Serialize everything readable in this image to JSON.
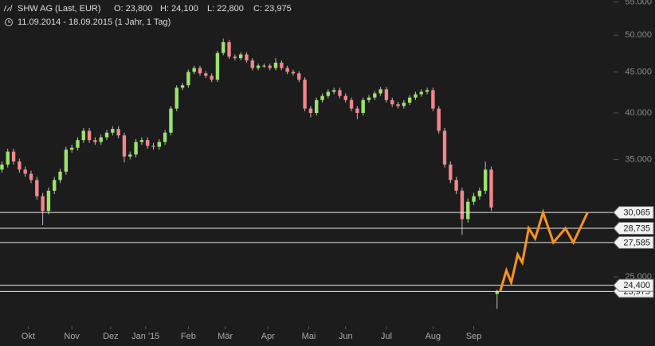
{
  "chart_data": {
    "type": "candlestick",
    "title": "SHW AG (Last, EUR)",
    "ohlc_labels": [
      "O: 23,800",
      "H: 24,100",
      "L: 22,800",
      "C: 23,975"
    ],
    "subtitle": "11.09.2014 - 18.09.2015 (1 Jahr, 1 Tag)",
    "log_scale": true,
    "ylim": [
      20500,
      55300
    ],
    "yticks": [
      {
        "value": 55000,
        "label": "55.000"
      },
      {
        "value": 50000,
        "label": "50.000"
      },
      {
        "value": 45000,
        "label": "45.000"
      },
      {
        "value": 40000,
        "label": "40.000"
      },
      {
        "value": 35000,
        "label": "35.000"
      },
      {
        "value": 25000,
        "label": "25.000"
      }
    ],
    "xlim": [
      -1,
      315
    ],
    "xticks": [
      {
        "value": 13.5,
        "label": "Okt"
      },
      {
        "value": 36,
        "label": "Nov"
      },
      {
        "value": 56,
        "label": "Dez"
      },
      {
        "value": 74,
        "label": "Jan '15"
      },
      {
        "value": 96,
        "label": "Feb"
      },
      {
        "value": 115,
        "label": "Mär"
      },
      {
        "value": 137,
        "label": "Apr"
      },
      {
        "value": 158,
        "label": "Mai"
      },
      {
        "value": 177,
        "label": "Jun"
      },
      {
        "value": 198,
        "label": "Jul"
      },
      {
        "value": 222,
        "label": "Aug"
      },
      {
        "value": 243,
        "label": "Sep"
      }
    ],
    "up_color": "#9be36b",
    "down_color": "#f4868c",
    "x": [
      0,
      3,
      6,
      9,
      12,
      15,
      18,
      21,
      24,
      27,
      30,
      33,
      36,
      39,
      42,
      45,
      48,
      51,
      54,
      57,
      60,
      63,
      66,
      69,
      72,
      75,
      78,
      81,
      84,
      87,
      90,
      93,
      96,
      99,
      102,
      105,
      108,
      111,
      114,
      117,
      120,
      123,
      126,
      129,
      132,
      135,
      138,
      141,
      144,
      147,
      150,
      153,
      156,
      159,
      162,
      165,
      168,
      171,
      174,
      177,
      180,
      183,
      186,
      189,
      192,
      195,
      198,
      201,
      204,
      207,
      210,
      213,
      216,
      219,
      222,
      225,
      228,
      231,
      234,
      237,
      240,
      243,
      246,
      249,
      252,
      255
    ],
    "open": [
      34000,
      34500,
      35800,
      34800,
      34000,
      33600,
      33000,
      31500,
      30200,
      32000,
      33000,
      33800,
      36000,
      36200,
      37000,
      38000,
      37000,
      36800,
      37300,
      37800,
      38200,
      37500,
      35300,
      35500,
      36800,
      37000,
      36400,
      36300,
      36800,
      37800,
      40500,
      43000,
      43300,
      45000,
      45500,
      44800,
      44500,
      44000,
      47500,
      49000,
      47000,
      46800,
      47300,
      46500,
      45500,
      45800,
      45800,
      45500,
      46200,
      45500,
      45000,
      44800,
      44000,
      40500,
      40000,
      41500,
      42000,
      42500,
      42700,
      42000,
      41500,
      40500,
      40000,
      41500,
      41800,
      42300,
      42800,
      41500,
      41000,
      40800,
      41200,
      41800,
      42200,
      42500,
      42700,
      40500,
      38000,
      34500,
      33000,
      32000,
      29500,
      31000,
      31500,
      32000,
      34000,
      23800
    ],
    "high": [
      34800,
      36100,
      36100,
      35100,
      34300,
      33900,
      33300,
      31800,
      32300,
      33300,
      34100,
      36300,
      36500,
      37300,
      38300,
      38300,
      37300,
      37600,
      38100,
      38500,
      38500,
      37800,
      35800,
      37100,
      37300,
      37300,
      36700,
      37100,
      38100,
      40800,
      43300,
      43600,
      45300,
      45800,
      45800,
      45100,
      44800,
      47800,
      49500,
      49300,
      47300,
      47600,
      47600,
      46800,
      46100,
      46100,
      46100,
      46800,
      46500,
      45800,
      45300,
      45100,
      44300,
      40800,
      41800,
      42300,
      42800,
      43000,
      43000,
      42300,
      41800,
      40800,
      41800,
      42100,
      42600,
      43100,
      43100,
      41800,
      41300,
      41500,
      42100,
      42500,
      42800,
      43000,
      43000,
      40800,
      38300,
      34800,
      33300,
      32300,
      31300,
      31800,
      32300,
      34800,
      34300,
      24100
    ],
    "low": [
      33700,
      34200,
      34500,
      33700,
      33300,
      32700,
      31200,
      29000,
      29900,
      31700,
      32700,
      33500,
      35700,
      35900,
      36700,
      36700,
      36500,
      36500,
      37000,
      37500,
      37200,
      34700,
      35000,
      35200,
      36500,
      36100,
      36000,
      36000,
      36500,
      37500,
      40200,
      42700,
      43000,
      44700,
      44500,
      44200,
      43700,
      43700,
      47200,
      46700,
      46500,
      46500,
      46200,
      45200,
      45200,
      45500,
      45200,
      45200,
      45200,
      44700,
      44500,
      43700,
      40200,
      39500,
      39700,
      41200,
      41700,
      42200,
      41700,
      41200,
      40200,
      39300,
      39700,
      41200,
      41500,
      42000,
      41200,
      40700,
      40500,
      40500,
      40900,
      41500,
      41900,
      42200,
      40200,
      37700,
      34200,
      32700,
      31700,
      28200,
      29200,
      30700,
      31200,
      31700,
      30200,
      22800
    ],
    "close": [
      34500,
      35800,
      34800,
      34000,
      33600,
      33000,
      31500,
      30200,
      32000,
      33000,
      33800,
      36000,
      36200,
      37000,
      38000,
      37000,
      36800,
      37300,
      37800,
      38200,
      37500,
      35300,
      35500,
      36800,
      37000,
      36400,
      36300,
      36800,
      37800,
      40500,
      43000,
      43300,
      45000,
      45500,
      44800,
      44500,
      44000,
      47500,
      49000,
      47000,
      46800,
      47300,
      46500,
      45500,
      45800,
      45800,
      45500,
      46200,
      45500,
      45000,
      44800,
      44000,
      40500,
      40000,
      41500,
      42000,
      42500,
      42700,
      42000,
      41500,
      40500,
      40000,
      41500,
      41800,
      42300,
      42800,
      41500,
      41000,
      40800,
      41200,
      41800,
      42200,
      42500,
      42700,
      40500,
      38000,
      34500,
      33000,
      32000,
      29500,
      31000,
      31500,
      32000,
      34000,
      30500,
      23975
    ],
    "levels": [
      {
        "value": 30065,
        "label": "30,065"
      },
      {
        "value": 28735,
        "label": "28,735"
      },
      {
        "value": 27585,
        "label": "27,585"
      },
      {
        "value": 24400,
        "label": "24,400"
      },
      {
        "value": 23975,
        "label": "23,975"
      }
    ],
    "projection": {
      "color": "#f7931e",
      "x": [
        256.6,
        259.8,
        262.3,
        265.6,
        268,
        271.3,
        274.6,
        278.7,
        284,
        290.2,
        294.3,
        301.6
      ],
      "values": [
        23975,
        25450,
        24600,
        26650,
        26050,
        28735,
        27900,
        30065,
        27585,
        28735,
        27585,
        30065
      ]
    }
  }
}
